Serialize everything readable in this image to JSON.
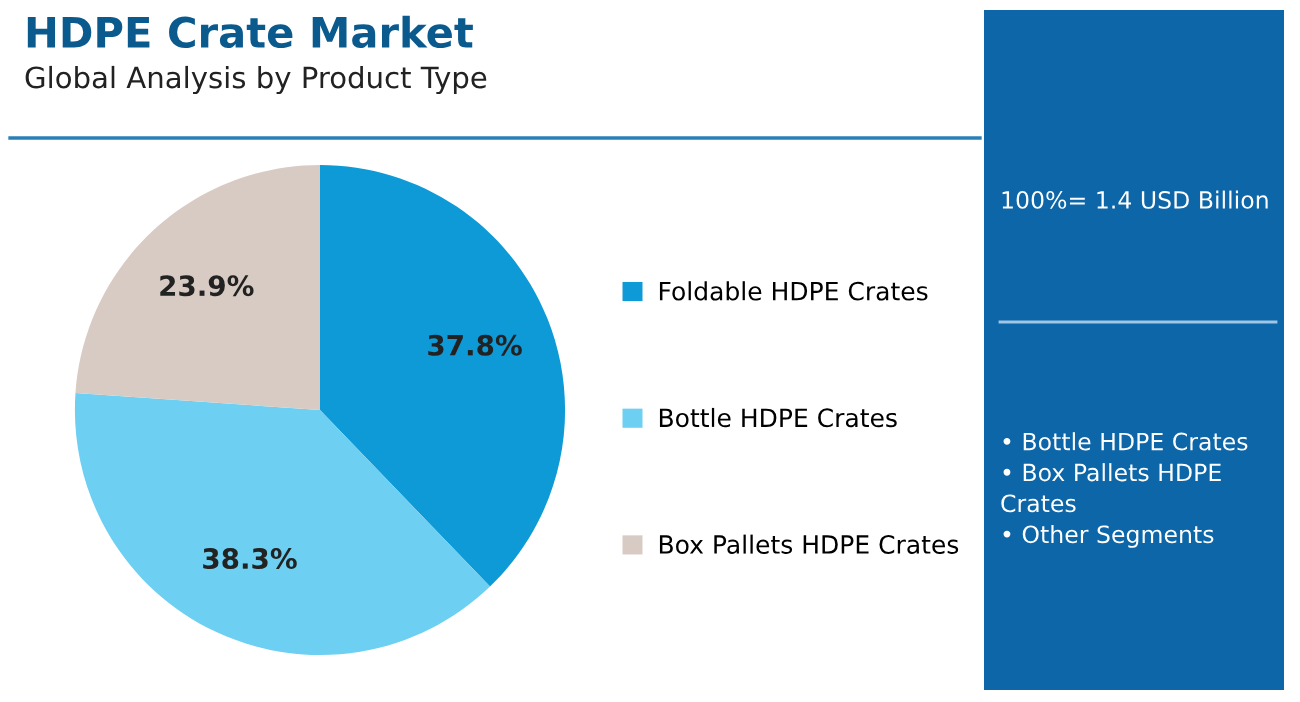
{
  "chart_data": {
    "type": "pie",
    "title": "HDPE Crate Market",
    "subtitle": "Global Analysis by Product Type",
    "categories": [
      "Foldable HDPE Crates",
      "Bottle HDPE Crates",
      "Box Pallets HDPE Crates"
    ],
    "values": [
      37.8,
      38.3,
      23.9
    ],
    "colors": [
      "#0e9ad7",
      "#6dcff2",
      "#d8cbc4"
    ],
    "value_labels": [
      "37.8%",
      "38.3%",
      "23.9%"
    ],
    "legend": "right",
    "annotations": [
      "100%= 1.4 USD Billion",
      "• Bottle HDPE Crates\n• Box Pallets HDPE\nCrates\n• Other Segments"
    ]
  }
}
